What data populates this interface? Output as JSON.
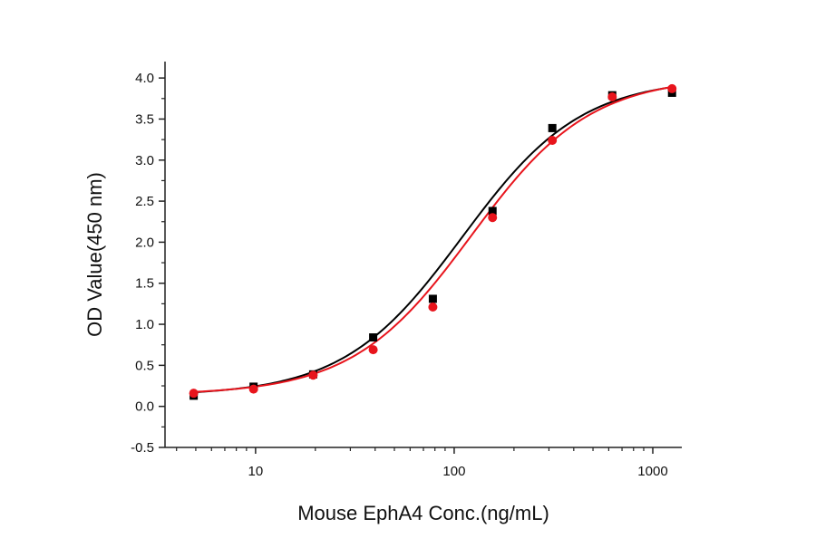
{
  "chart_data": {
    "type": "scatter",
    "title": "",
    "xlabel": "Mouse EphA4  Conc.(ng/mL)",
    "ylabel": "OD Value(450 nm)",
    "x_scale": "log",
    "xlim": [
      3.5,
      1400
    ],
    "ylim": [
      -0.5,
      4.2
    ],
    "x_ticks": [
      10,
      100,
      1000
    ],
    "x_tick_labels": [
      "10",
      "100",
      "1000"
    ],
    "y_ticks": [
      -0.5,
      0.0,
      0.5,
      1.0,
      1.5,
      2.0,
      2.5,
      3.0,
      3.5,
      4.0
    ],
    "y_tick_labels": [
      "-0.5",
      "0.0",
      "0.5",
      "1.0",
      "1.5",
      "2.0",
      "2.5",
      "3.0",
      "3.5",
      "4.0"
    ],
    "grid": false,
    "legend": "none",
    "series": [
      {
        "color": "#000000",
        "marker": "square",
        "fit": "sigmoid",
        "x": [
          4.88,
          9.77,
          19.5,
          39.1,
          78.1,
          156,
          312,
          625,
          1250
        ],
        "y": [
          0.13,
          0.24,
          0.39,
          0.84,
          1.31,
          2.38,
          3.39,
          3.79,
          3.82
        ],
        "fit_curve": {
          "bottom": 0.13,
          "top": 4.0,
          "ec50": 110,
          "hill": 1.45
        }
      },
      {
        "color": "#e8141c",
        "marker": "circle",
        "fit": "sigmoid",
        "x": [
          4.88,
          9.77,
          19.5,
          39.1,
          78.1,
          156,
          312,
          625,
          1250
        ],
        "y": [
          0.16,
          0.21,
          0.38,
          0.69,
          1.21,
          2.3,
          3.24,
          3.77,
          3.87
        ],
        "fit_curve": {
          "bottom": 0.14,
          "top": 4.02,
          "ec50": 122,
          "hill": 1.45
        }
      }
    ]
  }
}
